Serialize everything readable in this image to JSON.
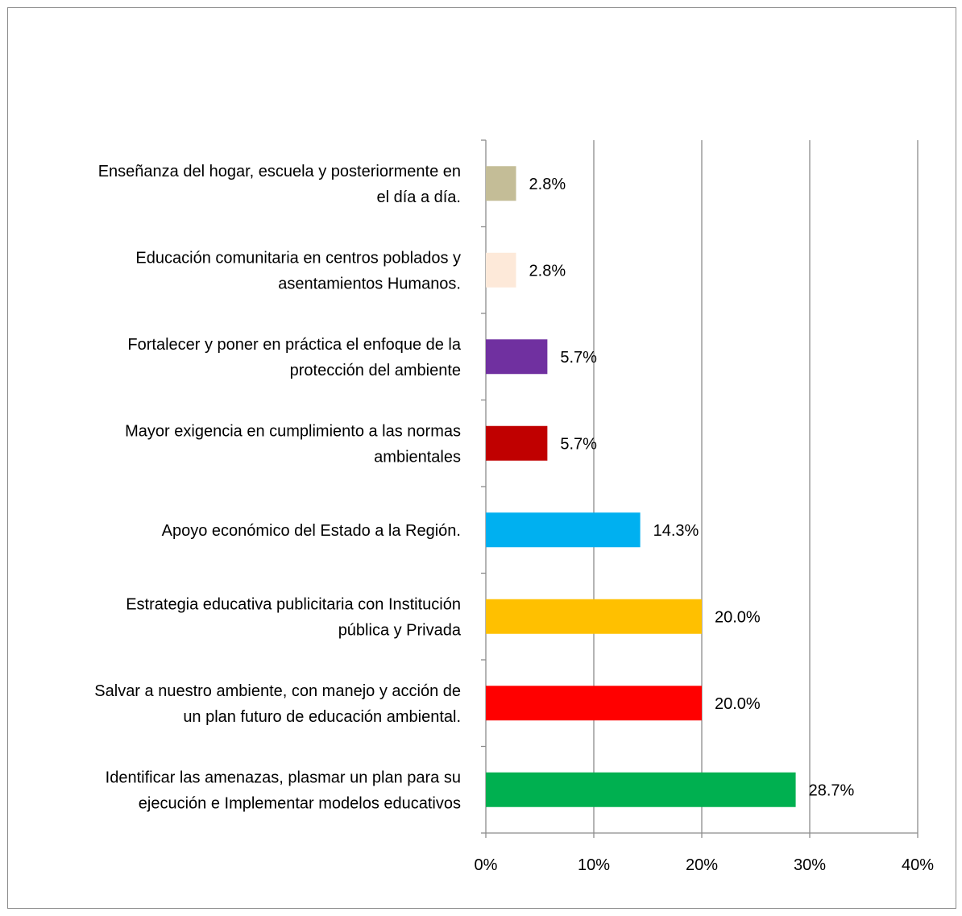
{
  "chart_data": {
    "type": "bar",
    "orientation": "horizontal",
    "categories": [
      [
        "Enseñanza del hogar, escuela y posteriormente en",
        "el día a día."
      ],
      [
        "Educación comunitaria en centros poblados y",
        "asentamientos Humanos."
      ],
      [
        "Fortalecer y poner en práctica el enfoque de la",
        "protección del ambiente"
      ],
      [
        "Mayor exigencia en cumplimiento a las normas",
        "ambientales"
      ],
      [
        "Apoyo económico del Estado a la Región."
      ],
      [
        "Estrategia educativa publicitaria  con Institución",
        "pública y Privada"
      ],
      [
        "Salvar a nuestro ambiente, con manejo y acción de",
        "un plan futuro de educación ambiental."
      ],
      [
        "Identificar las amenazas, plasmar un plan para su",
        "ejecución e Implementar modelos educativos"
      ]
    ],
    "values": [
      2.8,
      2.8,
      5.7,
      5.7,
      14.3,
      20.0,
      20.0,
      28.7
    ],
    "data_labels": [
      "2.8%",
      "2.8%",
      "5.7%",
      "5.7%",
      "14.3%",
      "20.0%",
      "20.0%",
      "28.7%"
    ],
    "colors": [
      "#c4bd97",
      "#fde9d9",
      "#7030a0",
      "#c00000",
      "#00b0f0",
      "#ffc000",
      "#ff0000",
      "#00b050"
    ],
    "xlim": [
      0,
      40
    ],
    "xticks": [
      "0%",
      "10%",
      "20%",
      "30%",
      "40%"
    ],
    "grid": true,
    "title": "",
    "xlabel": "",
    "ylabel": ""
  }
}
